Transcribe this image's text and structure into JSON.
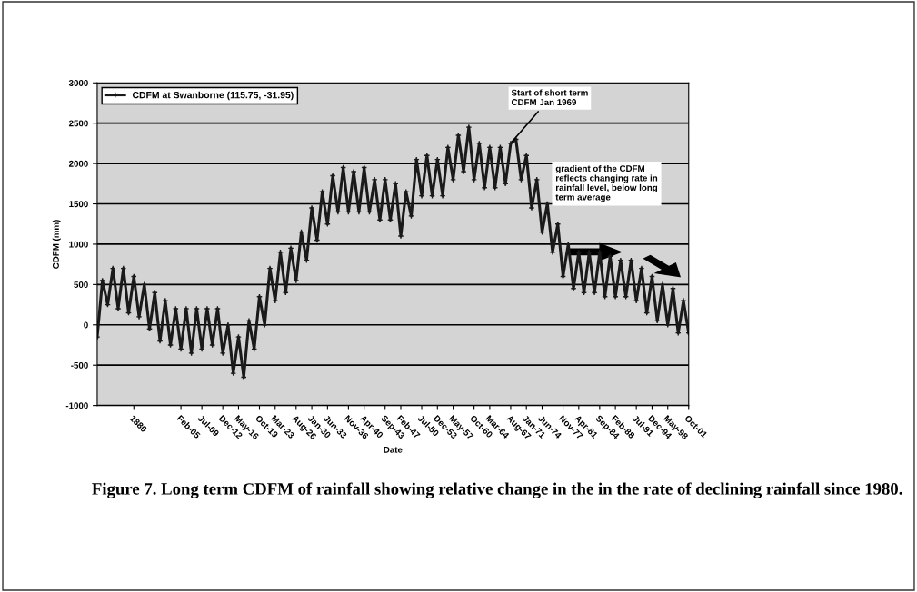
{
  "chart_data": {
    "type": "line",
    "xlabel": "Date",
    "ylabel": "CDFM (mm)",
    "categories": [
      null,
      null,
      null,
      null,
      null,
      null,
      null,
      "1880",
      null,
      null,
      null,
      null,
      null,
      null,
      null,
      null,
      "Feb-05",
      null,
      null,
      null,
      "Jul-09",
      null,
      null,
      null,
      "Dec-12",
      null,
      null,
      "May-16",
      null,
      null,
      null,
      "Oct-19",
      null,
      null,
      "Mar-23",
      null,
      null,
      null,
      "Aug-26",
      null,
      null,
      "Jan-30",
      null,
      null,
      "Jun-33",
      null,
      null,
      null,
      "Nov-36",
      null,
      null,
      "Apr-40",
      null,
      null,
      null,
      "Sep-43",
      null,
      null,
      "Feb-47",
      null,
      null,
      null,
      "Jul-50",
      null,
      null,
      "Dec-53",
      null,
      null,
      "May-57",
      null,
      null,
      null,
      "Oct-60",
      null,
      null,
      "Mar-64",
      null,
      null,
      null,
      "Aug-67",
      null,
      null,
      "Jan-71",
      null,
      null,
      "Jun-74",
      null,
      null,
      null,
      "Nov-77",
      null,
      null,
      "Apr-81",
      null,
      null,
      null,
      "Sep-84",
      null,
      null,
      "Feb-88",
      null,
      null,
      null,
      "Jul-91",
      null,
      null,
      "Dec-94",
      null,
      null,
      "May-98",
      null,
      null,
      null,
      "Oct-01"
    ],
    "series": [
      {
        "name": "CDFM at Swanborne (115.75, -31.95)",
        "color": "#1a1a1a",
        "values": [
          -150,
          550,
          250,
          700,
          200,
          700,
          150,
          600,
          100,
          500,
          -50,
          400,
          -200,
          300,
          -250,
          200,
          -300,
          200,
          -350,
          200,
          -300,
          200,
          -250,
          200,
          -350,
          0,
          -600,
          -150,
          -650,
          50,
          -300,
          350,
          0,
          700,
          300,
          900,
          400,
          950,
          550,
          1150,
          800,
          1450,
          1050,
          1650,
          1250,
          1850,
          1400,
          1950,
          1400,
          1900,
          1400,
          1950,
          1400,
          1800,
          1300,
          1800,
          1300,
          1750,
          1100,
          1650,
          1350,
          2050,
          1600,
          2100,
          1600,
          2050,
          1600,
          2200,
          1800,
          2350,
          1900,
          2450,
          1800,
          2250,
          1700,
          2200,
          1700,
          2200,
          1750,
          2250,
          2300,
          1800,
          2100,
          1450,
          1800,
          1150,
          1500,
          900,
          1250,
          600,
          1000,
          450,
          900,
          400,
          900,
          400,
          900,
          350,
          850,
          350,
          800,
          350,
          800,
          300,
          700,
          150,
          600,
          50,
          500,
          0,
          450,
          -100,
          300,
          -100
        ]
      }
    ],
    "ylim": [
      -1000,
      3000
    ],
    "yticks": [
      -1000,
      -500,
      0,
      500,
      1000,
      1500,
      2000,
      2500,
      3000
    ],
    "grid": "y",
    "legend": "top left",
    "marker": "cross",
    "line_style": "solid",
    "annotations": [
      {
        "text": "Start of short term\nCDFM Jan 1969",
        "x": "Aug-67",
        "y": 2250
      },
      "gradient of the CDFM\nreflects changing rate in\nrainfall level, below long\nterm average",
      "Figure 7. Long term CDFM of rainfall showing relative change in the in the rate of declining rainfall since 1980."
    ]
  }
}
